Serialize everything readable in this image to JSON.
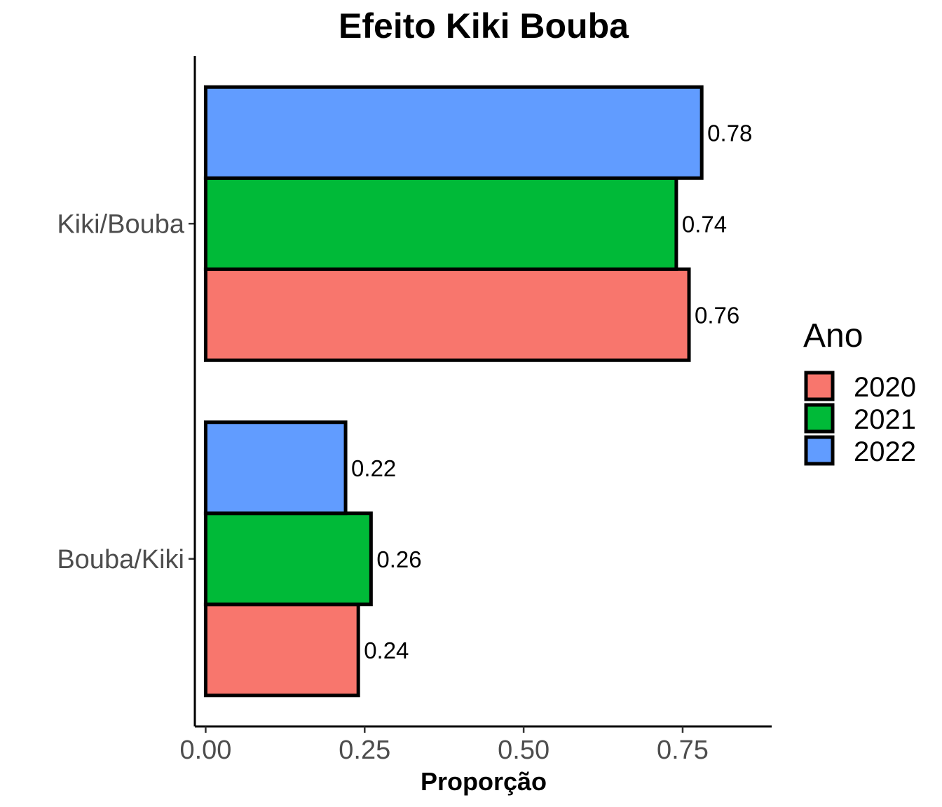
{
  "chart_data": {
    "type": "bar",
    "orientation": "horizontal",
    "title": "Efeito Kiki Bouba",
    "xlabel": "Proporção",
    "ylabel": "",
    "xlim": [
      -0.017,
      0.89
    ],
    "x_ticks": [
      0.0,
      0.25,
      0.5,
      0.75
    ],
    "x_tick_labels": [
      "0.00",
      "0.25",
      "0.50",
      "0.75"
    ],
    "categories": [
      "Kiki/Bouba",
      "Bouba/Kiki"
    ],
    "legend": {
      "title": "Ano",
      "position": "right"
    },
    "grid": false,
    "series": [
      {
        "name": "2020",
        "color": "#F8766D",
        "values": [
          0.76,
          0.24
        ],
        "labels": [
          "0.76",
          "0.24"
        ]
      },
      {
        "name": "2021",
        "color": "#00BA38",
        "values": [
          0.74,
          0.26
        ],
        "labels": [
          "0.74",
          "0.26"
        ]
      },
      {
        "name": "2022",
        "color": "#619CFF",
        "values": [
          0.78,
          0.22
        ],
        "labels": [
          "0.78",
          "0.22"
        ]
      }
    ]
  }
}
